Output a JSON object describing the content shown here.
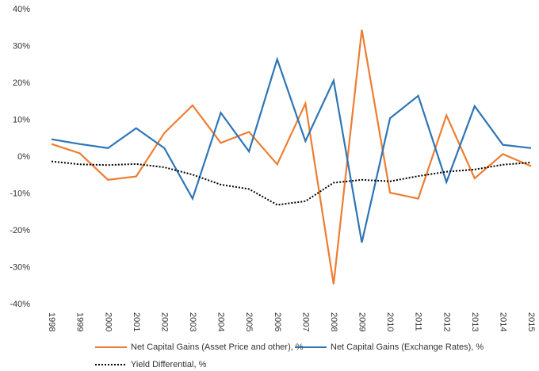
{
  "chart_data": {
    "type": "line",
    "categories": [
      "1998",
      "1999",
      "2000",
      "2001",
      "2002",
      "2003",
      "2004",
      "2005",
      "2006",
      "2007",
      "2008",
      "2009",
      "2010",
      "2011",
      "2012",
      "2013",
      "2014",
      "2015"
    ],
    "series": [
      {
        "name": "Net Capital Gains (Asset Price and other), %",
        "color": "#ed7d31",
        "style": "solid",
        "values": [
          3.5,
          1,
          -6.2,
          -5.3,
          6.5,
          14,
          3.8,
          6.8,
          -2,
          14.5,
          -34.5,
          34.5,
          -9.7,
          -11.3,
          11.3,
          -5.8,
          0.8,
          -2.5
        ]
      },
      {
        "name": "Net Capital Gains (Exchange Rates), %",
        "color": "#2e75b6",
        "style": "solid",
        "values": [
          4.8,
          3.5,
          2.4,
          7.8,
          2.4,
          -11.3,
          12,
          1.5,
          26.5,
          4.3,
          20.7,
          -23.2,
          10.5,
          16.6,
          -6.8,
          13.8,
          3.3,
          2.4
        ]
      },
      {
        "name": "Yield Differential, %",
        "color": "#000000",
        "style": "dotted",
        "values": [
          -1.2,
          -2,
          -2.2,
          -1.9,
          -2.8,
          -4.8,
          -7.5,
          -8.7,
          -13,
          -12,
          -7,
          -6.2,
          -6.6,
          -5.2,
          -4,
          -3.4,
          -2.1,
          -1.5
        ]
      }
    ],
    "ylim": [
      -40,
      40
    ],
    "yticks": [
      {
        "value": -40,
        "label": "-40%"
      },
      {
        "value": -30,
        "label": "-30%"
      },
      {
        "value": -20,
        "label": "-20%"
      },
      {
        "value": -10,
        "label": "-10%"
      },
      {
        "value": 0,
        "label": "0%"
      },
      {
        "value": 10,
        "label": "10%"
      },
      {
        "value": 20,
        "label": "20%"
      },
      {
        "value": 30,
        "label": "30%"
      },
      {
        "value": 40,
        "label": "40%"
      }
    ],
    "grid": false,
    "legend": "bottom"
  }
}
